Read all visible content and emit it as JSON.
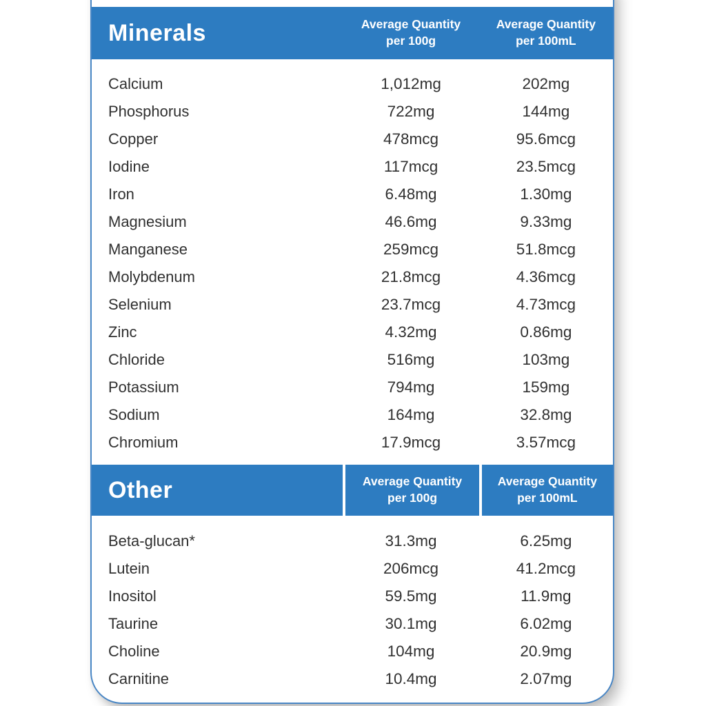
{
  "colors": {
    "accent_blue": "#2d7cc1",
    "border_blue": "#4886c5",
    "header_text": "#ffffff",
    "body_text": "#303030"
  },
  "sections": [
    {
      "title": "Minerals",
      "columns": [
        {
          "line1": "Average Quantity",
          "line2": "per 100g"
        },
        {
          "line1": "Average Quantity",
          "line2": "per 100mL"
        }
      ],
      "rows": [
        {
          "name": "Calcium",
          "per100g": "1,012mg",
          "per100ml": "202mg"
        },
        {
          "name": "Phosphorus",
          "per100g": "722mg",
          "per100ml": "144mg"
        },
        {
          "name": "Copper",
          "per100g": "478mcg",
          "per100ml": "95.6mcg"
        },
        {
          "name": "Iodine",
          "per100g": "117mcg",
          "per100ml": "23.5mcg"
        },
        {
          "name": "Iron",
          "per100g": "6.48mg",
          "per100ml": "1.30mg"
        },
        {
          "name": "Magnesium",
          "per100g": "46.6mg",
          "per100ml": "9.33mg"
        },
        {
          "name": "Manganese",
          "per100g": "259mcg",
          "per100ml": "51.8mcg"
        },
        {
          "name": "Molybdenum",
          "per100g": "21.8mcg",
          "per100ml": "4.36mcg"
        },
        {
          "name": "Selenium",
          "per100g": "23.7mcg",
          "per100ml": "4.73mcg"
        },
        {
          "name": "Zinc",
          "per100g": "4.32mg",
          "per100ml": "0.86mg"
        },
        {
          "name": "Chloride",
          "per100g": "516mg",
          "per100ml": "103mg"
        },
        {
          "name": "Potassium",
          "per100g": "794mg",
          "per100ml": "159mg"
        },
        {
          "name": "Sodium",
          "per100g": "164mg",
          "per100ml": "32.8mg"
        },
        {
          "name": "Chromium",
          "per100g": "17.9mcg",
          "per100ml": "3.57mcg"
        }
      ]
    },
    {
      "title": "Other",
      "columns": [
        {
          "line1": "Average Quantity",
          "line2": "per 100g"
        },
        {
          "line1": "Average Quantity",
          "line2": "per 100mL"
        }
      ],
      "rows": [
        {
          "name": "Beta-glucan*",
          "per100g": "31.3mg",
          "per100ml": "6.25mg"
        },
        {
          "name": "Lutein",
          "per100g": "206mcg",
          "per100ml": "41.2mcg"
        },
        {
          "name": "Inositol",
          "per100g": "59.5mg",
          "per100ml": "11.9mg"
        },
        {
          "name": "Taurine",
          "per100g": "30.1mg",
          "per100ml": "6.02mg"
        },
        {
          "name": "Choline",
          "per100g": "104mg",
          "per100ml": "20.9mg"
        },
        {
          "name": "Carnitine",
          "per100g": "10.4mg",
          "per100ml": "2.07mg"
        }
      ]
    }
  ]
}
